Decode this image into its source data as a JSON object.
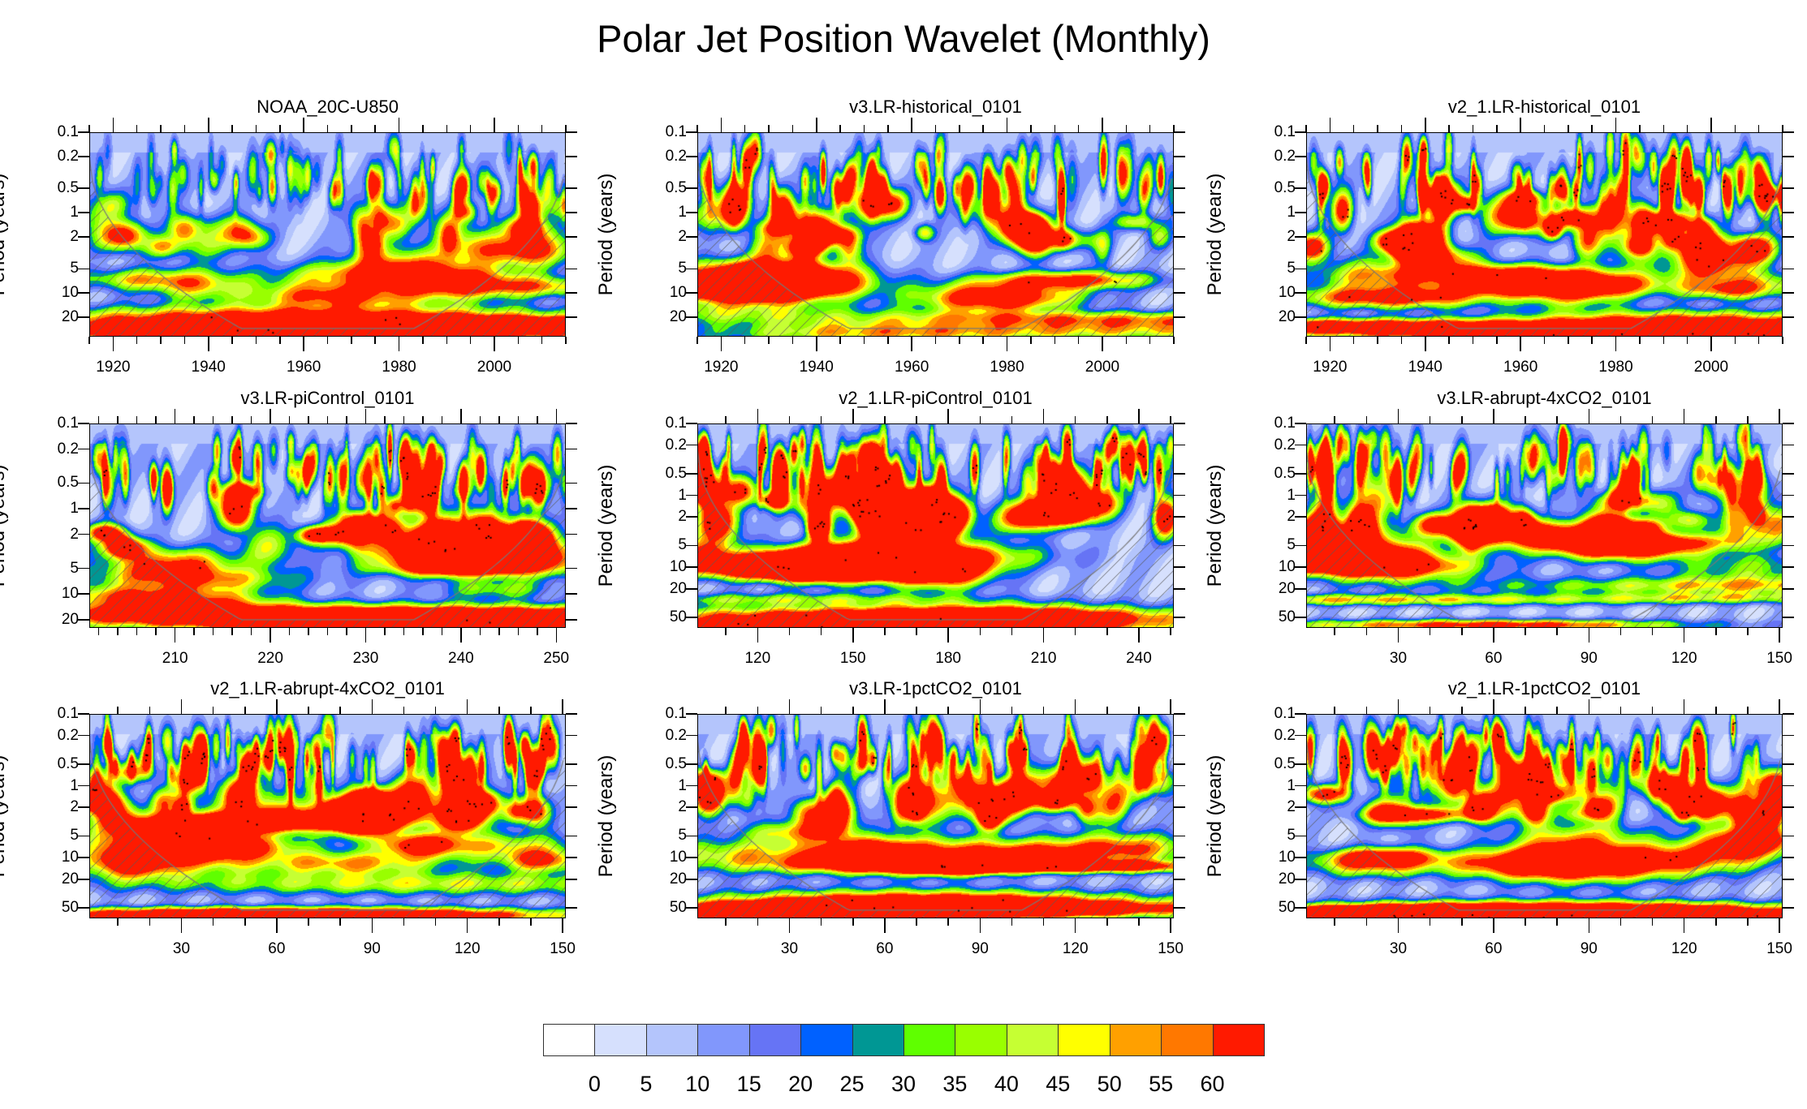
{
  "title": "Polar Jet Position Wavelet (Monthly)",
  "chart_data": {
    "type": "heatmap",
    "title": "Polar Jet Position Wavelet (Monthly)",
    "description": "Wavelet power spectra (period vs time) with cone of influence hatching and significance stippling",
    "colorbar": {
      "levels": [
        0,
        5,
        10,
        15,
        20,
        25,
        30,
        35,
        40,
        45,
        50,
        55,
        60
      ],
      "labels": [
        "0",
        "5",
        "10",
        "15",
        "20",
        "25",
        "30",
        "35",
        "40",
        "45",
        "50",
        "55",
        "60"
      ],
      "colors": [
        "#ffffff",
        "#d6e0fd",
        "#b4c5fc",
        "#8197fc",
        "#6674f5",
        "#0061ff",
        "#009794",
        "#5fff00",
        "#99ff00",
        "#c6ff33",
        "#ffff00",
        "#ffa000",
        "#ff7800",
        "#ff1a00"
      ],
      "placement": "bottom"
    },
    "panels": [
      {
        "title": "NOAA_20C-U850",
        "ylabel": "Period (years)",
        "yticks": [
          "0.1",
          "0.2",
          "0.5",
          "1",
          "2",
          "5",
          "10",
          "20"
        ],
        "ylim": [
          0.1,
          35
        ],
        "xticks": [
          "1920",
          "1940",
          "1960",
          "1980",
          "2000"
        ],
        "xtick_values": [
          1920,
          1940,
          1960,
          1980,
          2000
        ],
        "xlim": [
          1915,
          2015
        ],
        "features": "weak power except red band at periods >25 yr early/late; red patches ~2-3 yr near 1925 and 2002",
        "seed": 11,
        "intensity": 0.55,
        "low_band": 0.95
      },
      {
        "title": "v3.LR-historical_0101",
        "ylabel": "Period (years)",
        "yticks": [
          "0.1",
          "0.2",
          "0.5",
          "1",
          "2",
          "5",
          "10",
          "20"
        ],
        "ylim": [
          0.1,
          35
        ],
        "xticks": [
          "1920",
          "1940",
          "1960",
          "1980",
          "2000"
        ],
        "xtick_values": [
          1920,
          1940,
          1960,
          1980,
          2000
        ],
        "xlim": [
          1915,
          2015
        ],
        "features": "strong power at 0.5-2 yr, red 2-5 yr patches around 1960 and 2005",
        "seed": 23,
        "intensity": 0.85,
        "low_band": 0.55
      },
      {
        "title": "v2_1.LR-historical_0101",
        "ylabel": "Period (years)",
        "yticks": [
          "0.1",
          "0.2",
          "0.5",
          "1",
          "2",
          "5",
          "10",
          "20"
        ],
        "ylim": [
          0.1,
          35
        ],
        "xticks": [
          "1920",
          "1940",
          "1960",
          "1980",
          "2000"
        ],
        "xtick_values": [
          1920,
          1940,
          1960,
          1980,
          2000
        ],
        "xlim": [
          1915,
          2015
        ],
        "features": "red band near 1 yr throughout, large red region 10-20 yr 1945-1990",
        "seed": 37,
        "intensity": 1.0,
        "low_band": 1.0
      },
      {
        "title": "v3.LR-piControl_0101",
        "ylabel": "Period (years)",
        "yticks": [
          "0.1",
          "0.2",
          "0.5",
          "1",
          "2",
          "5",
          "10",
          "20"
        ],
        "ylim": [
          0.1,
          25
        ],
        "xticks": [
          "210",
          "220",
          "230",
          "240",
          "250"
        ],
        "xtick_values": [
          210,
          220,
          230,
          240,
          250
        ],
        "xlim": [
          201,
          251
        ],
        "features": "red at 1-2 yr near 203-210 and 238-248, red band ~10 yr 225-251",
        "seed": 41,
        "intensity": 0.9,
        "low_band": 0.8
      },
      {
        "title": "v2_1.LR-piControl_0101",
        "ylabel": "Period (years)",
        "yticks": [
          "0.1",
          "0.2",
          "0.5",
          "1",
          "2",
          "5",
          "10",
          "20",
          "50"
        ],
        "ylim": [
          0.1,
          70
        ],
        "xticks": [
          "120",
          "150",
          "180",
          "210",
          "240"
        ],
        "xtick_values": [
          120,
          150,
          180,
          210,
          240
        ],
        "xlim": [
          101,
          251
        ],
        "features": "red band near 1 yr throughout, red 5-20 yr 115-165",
        "seed": 53,
        "intensity": 1.05,
        "low_band": 0.85
      },
      {
        "title": "v3.LR-abrupt-4xCO2_0101",
        "ylabel": "Period (years)",
        "yticks": [
          "0.1",
          "0.2",
          "0.5",
          "1",
          "2",
          "5",
          "10",
          "20",
          "50"
        ],
        "ylim": [
          0.1,
          70
        ],
        "xticks": [
          "30",
          "60",
          "90",
          "120",
          "150"
        ],
        "xtick_values": [
          30,
          60,
          90,
          120,
          150
        ],
        "xlim": [
          1,
          151
        ],
        "features": "red ~10 yr years 1-35 and 105-120, red 10-20 yr 115-150",
        "seed": 67,
        "intensity": 0.8,
        "low_band": 0.65
      },
      {
        "title": "v2_1.LR-abrupt-4xCO2_0101",
        "ylabel": "Period (years)",
        "yticks": [
          "0.1",
          "0.2",
          "0.5",
          "1",
          "2",
          "5",
          "10",
          "20",
          "50"
        ],
        "ylim": [
          0.1,
          70
        ],
        "xticks": [
          "30",
          "60",
          "90",
          "120",
          "150"
        ],
        "xtick_values": [
          30,
          60,
          90,
          120,
          150
        ],
        "xlim": [
          1,
          151
        ],
        "features": "red near 1 yr throughout, red 3-5 yr diagonals, red ~20 yr years 1-45",
        "seed": 79,
        "intensity": 0.95,
        "low_band": 0.7
      },
      {
        "title": "v3.LR-1pctCO2_0101",
        "ylabel": "Period (years)",
        "yticks": [
          "0.1",
          "0.2",
          "0.5",
          "1",
          "2",
          "5",
          "10",
          "20",
          "50"
        ],
        "ylim": [
          0.1,
          70
        ],
        "xticks": [
          "30",
          "60",
          "90",
          "120",
          "150"
        ],
        "xtick_values": [
          30,
          60,
          90,
          120,
          150
        ],
        "xlim": [
          1,
          151
        ],
        "features": "red 5-10 yr years 1-45, red 10-20 yr years 85-130, red band ~50 yr throughout",
        "seed": 83,
        "intensity": 0.85,
        "low_band": 1.0
      },
      {
        "title": "v2_1.LR-1pctCO2_0101",
        "ylabel": "Period (years)",
        "yticks": [
          "0.1",
          "0.2",
          "0.5",
          "1",
          "2",
          "5",
          "10",
          "20",
          "50"
        ],
        "ylim": [
          0.1,
          70
        ],
        "xticks": [
          "30",
          "60",
          "90",
          "120",
          "150"
        ],
        "xtick_values": [
          30,
          60,
          90,
          120,
          150
        ],
        "xlim": [
          1,
          151
        ],
        "features": "red near 1 yr throughout, large red region >10 yr across the full record",
        "seed": 97,
        "intensity": 0.9,
        "low_band": 1.15
      }
    ]
  }
}
